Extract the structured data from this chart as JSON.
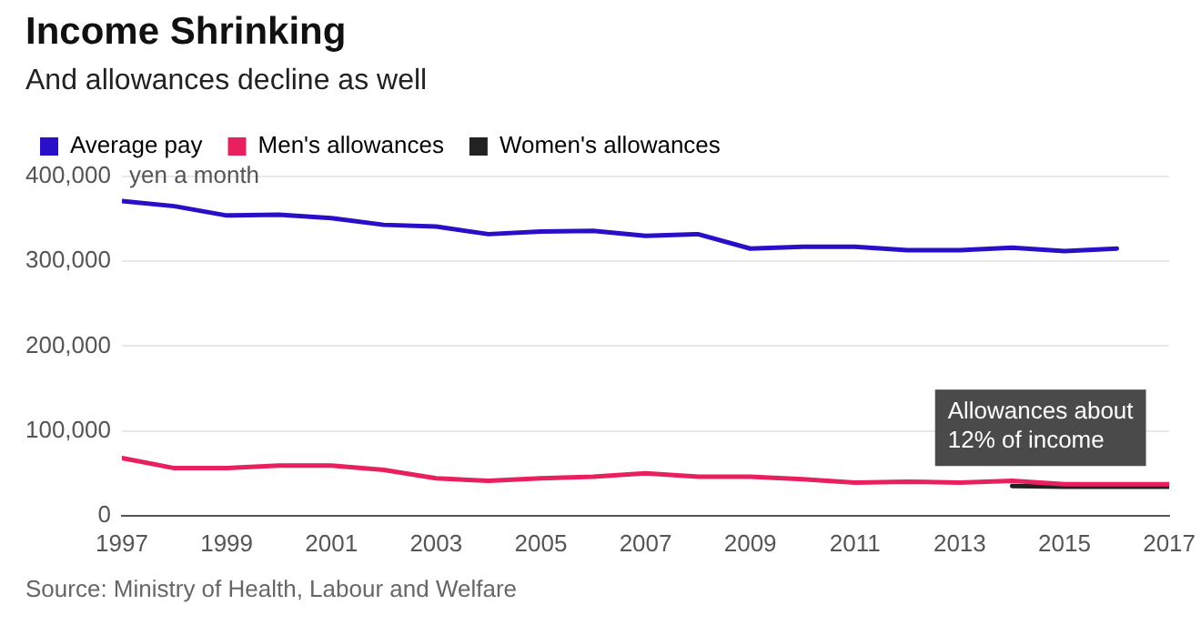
{
  "chart_data": {
    "type": "line",
    "title": "Income Shrinking",
    "subtitle": "And allowances decline as well",
    "ylabel": "yen a month",
    "x": [
      1997,
      1998,
      1999,
      2000,
      2001,
      2002,
      2003,
      2004,
      2005,
      2006,
      2007,
      2008,
      2009,
      2010,
      2011,
      2012,
      2013,
      2014,
      2015,
      2016,
      2017
    ],
    "series": [
      {
        "name": "Average pay",
        "color": "#2a0fc8",
        "values": [
          371000,
          365000,
          354000,
          355000,
          351000,
          343000,
          341000,
          332000,
          335000,
          336000,
          330000,
          332000,
          315000,
          317000,
          317000,
          313000,
          313000,
          316000,
          312000,
          315000,
          null
        ]
      },
      {
        "name": "Men's allowances",
        "color": "#e8205e",
        "values": [
          68000,
          56000,
          56000,
          59000,
          59000,
          54000,
          44000,
          41000,
          44000,
          46000,
          50000,
          46000,
          46000,
          43000,
          39000,
          40000,
          39000,
          41000,
          37000,
          37000,
          37000
        ]
      },
      {
        "name": "Women's allowances",
        "color": "#222222",
        "values": [
          null,
          null,
          null,
          null,
          null,
          null,
          null,
          null,
          null,
          null,
          null,
          null,
          null,
          null,
          null,
          null,
          null,
          35000,
          34000,
          34000,
          34000
        ]
      }
    ],
    "xlim": [
      1997,
      2017
    ],
    "xticks": [
      1997,
      1999,
      2001,
      2003,
      2005,
      2007,
      2009,
      2011,
      2013,
      2015,
      2017
    ],
    "ylim": [
      0,
      400000
    ],
    "yticks": [
      0,
      {
        "value": 100000,
        "label": "100,000"
      },
      {
        "value": 200000,
        "label": "200,000"
      },
      {
        "value": 300000,
        "label": "300,000"
      },
      {
        "value": 400000,
        "label": "400,000"
      }
    ],
    "grid": "y",
    "legend": "top left",
    "marker": "none",
    "line_style": "solid",
    "annotations": [
      {
        "text": "Allowances about 12% of income",
        "x": 2016,
        "y": 37000
      },
      "Source: Ministry of Health, Labour and Welfare"
    ]
  }
}
